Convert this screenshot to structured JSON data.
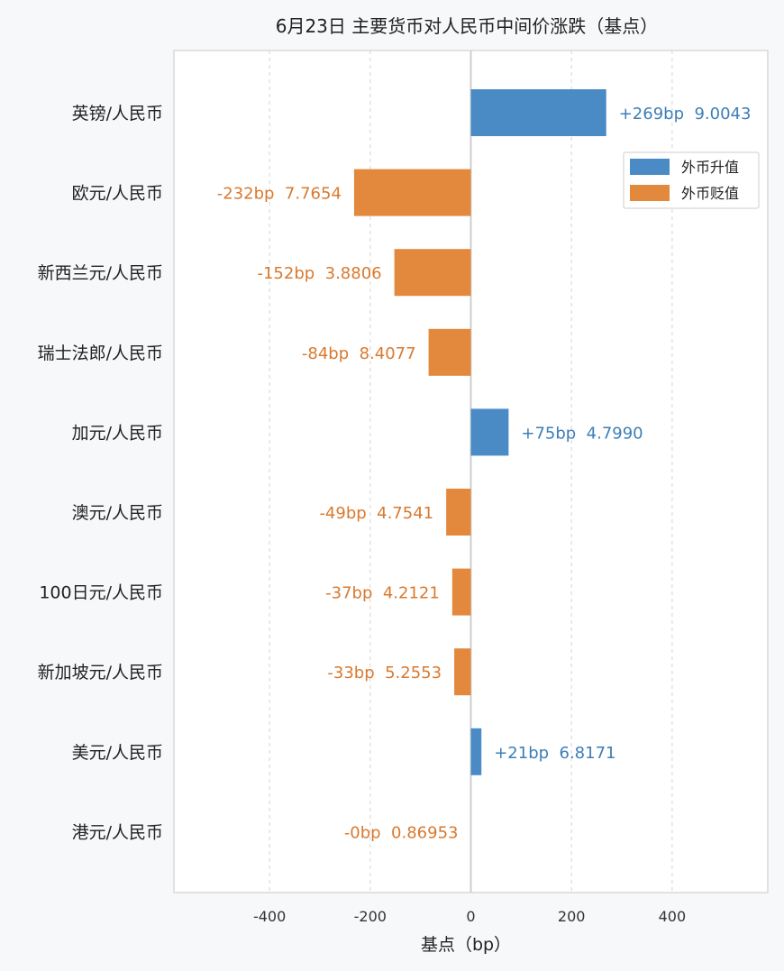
{
  "chart_data": {
    "type": "bar",
    "orientation": "horizontal",
    "title": "6月23日 主要货币对人民币中间价涨跌（基点）",
    "xlabel": "基点（bp）",
    "ylabel": "",
    "xlim": [
      -590,
      590
    ],
    "xticks": [
      -400,
      -200,
      0,
      200,
      400
    ],
    "xtick_labels": [
      "-400",
      "-200",
      "0",
      "200",
      "400"
    ],
    "grid": "vertical dashed",
    "categories": [
      "英镑/人民币",
      "欧元/人民币",
      "新西兰元/人民币",
      "瑞士法郎/人民币",
      "加元/人民币",
      "澳元/人民币",
      "100日元/人民币",
      "新加坡元/人民币",
      "美元/人民币",
      "港元/人民币"
    ],
    "values": [
      269,
      -232,
      -152,
      -84,
      75,
      -49,
      -37,
      -33,
      21,
      0
    ],
    "value_labels": [
      "+269bp",
      "-232bp",
      "-152bp",
      "-84bp",
      "+75bp",
      "-49bp",
      "-37bp",
      "-33bp",
      "+21bp",
      "-0bp"
    ],
    "rate_labels": [
      "9.0043",
      "7.7654",
      "3.8806",
      "8.4077",
      "4.7990",
      "4.7541",
      "4.2121",
      "5.2553",
      "6.8171",
      "0.86953"
    ],
    "legend": {
      "position": "top-right",
      "items": [
        {
          "label": "外币升值",
          "color": "#4a8bc6"
        },
        {
          "label": "外币贬值",
          "color": "#e3893e"
        }
      ]
    },
    "colors": {
      "up": "#4a8bc6",
      "down": "#e3893e",
      "up_text": "#3d7eb8",
      "down_text": "#d9792e"
    }
  }
}
